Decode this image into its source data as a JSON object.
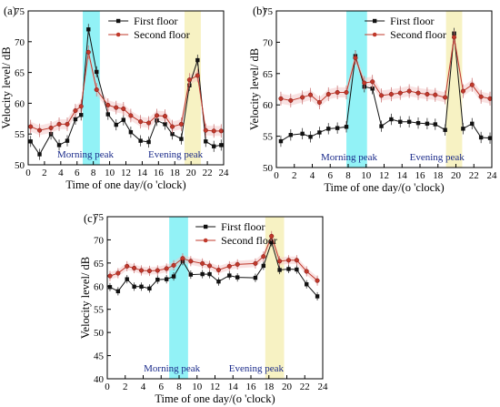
{
  "chart_data": [
    {
      "type": "line",
      "panel_label": "(a)",
      "xlabel": "Time of one day/(o 'clock)",
      "ylabel": "Velocity level/ dB",
      "xlim": [
        0,
        24
      ],
      "ylim": [
        50,
        75
      ],
      "xticks": [
        0,
        2,
        4,
        6,
        8,
        10,
        12,
        14,
        16,
        18,
        20,
        22,
        24
      ],
      "yticks": [
        50,
        55,
        60,
        65,
        70,
        75
      ],
      "legend_position": "top-center",
      "bands": [
        {
          "label": "Morning peak",
          "x0": 6.7,
          "x1": 8.8,
          "color": "#7ff0f4"
        },
        {
          "label": "Evening peak",
          "x0": 19.2,
          "x1": 21.2,
          "color": "#f6f0b8"
        }
      ],
      "series": [
        {
          "name": "First floor",
          "color": "#111111",
          "marker": "square",
          "x": [
            0.3,
            1.4,
            2.8,
            3.8,
            4.8,
            5.8,
            6.5,
            7.4,
            8.4,
            9.8,
            10.8,
            11.7,
            12.6,
            13.8,
            14.8,
            15.8,
            16.8,
            17.7,
            18.8,
            19.8,
            20.8,
            21.8,
            22.8,
            23.7
          ],
          "y": [
            53.8,
            51.7,
            55.0,
            53.2,
            53.9,
            57.4,
            58.1,
            72.0,
            65.1,
            58.2,
            56.5,
            57.3,
            55.3,
            53.9,
            53.7,
            57.2,
            56.6,
            55.0,
            54.2,
            62.9,
            67.0,
            53.8,
            53.0,
            53.2
          ]
        },
        {
          "name": "Second floor",
          "color": "#c0392b",
          "marker": "circle",
          "x": [
            0.3,
            1.4,
            2.8,
            3.8,
            4.8,
            5.8,
            6.5,
            7.4,
            8.4,
            9.8,
            10.8,
            11.7,
            12.6,
            13.8,
            14.8,
            15.8,
            16.8,
            17.7,
            18.8,
            19.8,
            20.8,
            21.8,
            22.8,
            23.7
          ],
          "y": [
            56.2,
            55.6,
            56.0,
            56.6,
            56.6,
            58.8,
            59.5,
            68.3,
            62.2,
            59.7,
            59.3,
            59.1,
            58.0,
            57.0,
            56.8,
            58.0,
            57.9,
            56.2,
            56.6,
            63.8,
            64.5,
            55.6,
            55.5,
            55.5
          ]
        }
      ]
    },
    {
      "type": "line",
      "panel_label": "(b)",
      "xlabel": "Time of one day/(o 'clock)",
      "ylabel": "Velocity level/ dB",
      "xlim": [
        0,
        24
      ],
      "ylim": [
        50,
        75
      ],
      "xticks": [
        0,
        2,
        4,
        6,
        8,
        10,
        12,
        14,
        16,
        18,
        20,
        22,
        24
      ],
      "yticks": [
        50,
        55,
        60,
        65,
        70,
        75
      ],
      "legend_position": "top-center",
      "bands": [
        {
          "label": "Morning peak",
          "x0": 7.8,
          "x1": 10.1,
          "color": "#7ff0f4"
        },
        {
          "label": "Evening peak",
          "x0": 18.9,
          "x1": 20.7,
          "color": "#f6f0b8"
        }
      ],
      "series": [
        {
          "name": "First floor",
          "color": "#111111",
          "marker": "square",
          "x": [
            0.5,
            1.6,
            2.9,
            3.8,
            4.8,
            5.8,
            6.8,
            7.8,
            8.8,
            9.8,
            10.7,
            11.7,
            12.8,
            13.8,
            14.8,
            15.8,
            16.8,
            17.7,
            18.8,
            19.8,
            20.8,
            21.8,
            22.8,
            23.8
          ],
          "y": [
            54.2,
            55.2,
            55.4,
            54.9,
            55.6,
            56.2,
            56.3,
            56.5,
            67.8,
            62.9,
            62.6,
            56.6,
            57.7,
            57.3,
            57.3,
            57.1,
            57.0,
            56.9,
            56.0,
            71.4,
            56.2,
            57.0,
            54.8,
            54.7
          ]
        },
        {
          "name": "Second floor",
          "color": "#c0392b",
          "marker": "circle",
          "x": [
            0.5,
            1.6,
            2.9,
            3.8,
            4.8,
            5.8,
            6.8,
            7.8,
            8.8,
            9.8,
            10.7,
            11.7,
            12.8,
            13.8,
            14.8,
            15.8,
            16.8,
            17.7,
            18.8,
            19.8,
            20.8,
            21.8,
            22.8,
            23.8
          ],
          "y": [
            61.0,
            60.7,
            61.2,
            61.6,
            60.4,
            61.7,
            62.0,
            62.0,
            67.5,
            63.5,
            63.7,
            61.5,
            61.7,
            61.9,
            62.2,
            61.9,
            61.7,
            61.6,
            61.2,
            70.8,
            62.2,
            63.2,
            61.3,
            61.0
          ]
        }
      ]
    },
    {
      "type": "line",
      "panel_label": "(c)",
      "xlabel": "Time of one day/(o 'clock)",
      "ylabel": "Velocity level/ dB",
      "xlim": [
        0,
        24
      ],
      "ylim": [
        40,
        75
      ],
      "xticks": [
        0,
        2,
        4,
        6,
        8,
        10,
        12,
        14,
        16,
        18,
        20,
        22,
        24
      ],
      "yticks": [
        40,
        45,
        50,
        55,
        60,
        65,
        70,
        75
      ],
      "legend_position": "top-center",
      "bands": [
        {
          "label": "Morning peak",
          "x0": 6.9,
          "x1": 9.0,
          "color": "#7ff0f4"
        },
        {
          "label": "Evening peak",
          "x0": 17.6,
          "x1": 19.7,
          "color": "#f6f0b8"
        }
      ],
      "series": [
        {
          "name": "First floor",
          "color": "#111111",
          "marker": "square",
          "x": [
            0.3,
            1.2,
            2.2,
            3.0,
            3.8,
            4.7,
            5.6,
            6.6,
            7.4,
            8.4,
            9.3,
            10.6,
            11.4,
            12.4,
            13.6,
            14.5,
            16.5,
            17.4,
            18.3,
            19.2,
            20.2,
            21.1,
            22.2,
            23.4
          ],
          "y": [
            59.8,
            58.9,
            61.5,
            59.9,
            59.9,
            59.5,
            61.4,
            61.5,
            62.1,
            65.4,
            62.5,
            62.6,
            62.6,
            61.0,
            62.3,
            61.9,
            61.8,
            64.4,
            69.5,
            63.5,
            63.7,
            63.6,
            60.4,
            57.8
          ]
        },
        {
          "name": "Second floor",
          "color": "#c0392b",
          "marker": "circle",
          "x": [
            0.3,
            1.2,
            2.2,
            3.0,
            3.8,
            4.7,
            5.6,
            6.6,
            7.4,
            8.4,
            9.3,
            10.6,
            11.4,
            12.4,
            13.6,
            14.5,
            16.5,
            17.4,
            18.3,
            19.2,
            20.2,
            21.1,
            22.2,
            23.4
          ],
          "y": [
            62.2,
            62.8,
            64.3,
            63.9,
            63.4,
            63.3,
            63.4,
            63.8,
            64.5,
            66.0,
            65.4,
            64.9,
            64.4,
            63.5,
            64.3,
            64.7,
            64.9,
            66.4,
            70.8,
            65.4,
            65.6,
            65.6,
            63.2,
            61.2
          ]
        }
      ]
    }
  ]
}
